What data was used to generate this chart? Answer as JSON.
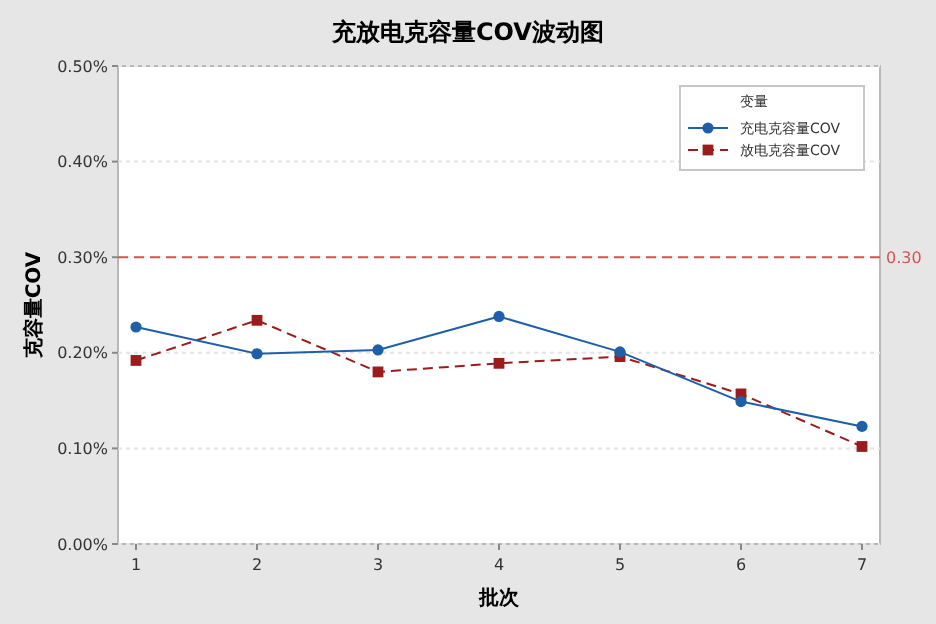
{
  "chart_data": {
    "type": "line",
    "title": "充放电克容量COV波动图",
    "xlabel": "批次",
    "ylabel": "克容量COV",
    "legend_title": "变量",
    "categories": [
      "1",
      "2",
      "3",
      "4",
      "5",
      "6",
      "7"
    ],
    "series": [
      {
        "name": "充电克容量COV",
        "color": "#1f5fa8",
        "marker": "circle",
        "line_style": "solid",
        "values": [
          0.227,
          0.199,
          0.203,
          0.238,
          0.201,
          0.149,
          0.123
        ]
      },
      {
        "name": "放电克容量COV",
        "color": "#9b1c1c",
        "marker": "square",
        "line_style": "dashed",
        "values": [
          0.192,
          0.234,
          0.18,
          0.189,
          0.196,
          0.157,
          0.102
        ]
      }
    ],
    "ylim": [
      0,
      0.5
    ],
    "yticks": [
      {
        "value": 0,
        "label": "0.00%"
      },
      {
        "value": 0.1,
        "label": "0.10%"
      },
      {
        "value": 0.2,
        "label": "0.20%"
      },
      {
        "value": 0.3,
        "label": "0.30%"
      },
      {
        "value": 0.4,
        "label": "0.40%"
      },
      {
        "value": 0.5,
        "label": "0.50%"
      }
    ],
    "ref_lines": [
      {
        "axis": "y",
        "value": 0.3,
        "label": "0.30",
        "color": "#d9534f",
        "line_style": "dashed"
      }
    ],
    "grid": "y",
    "legend": "top right"
  }
}
